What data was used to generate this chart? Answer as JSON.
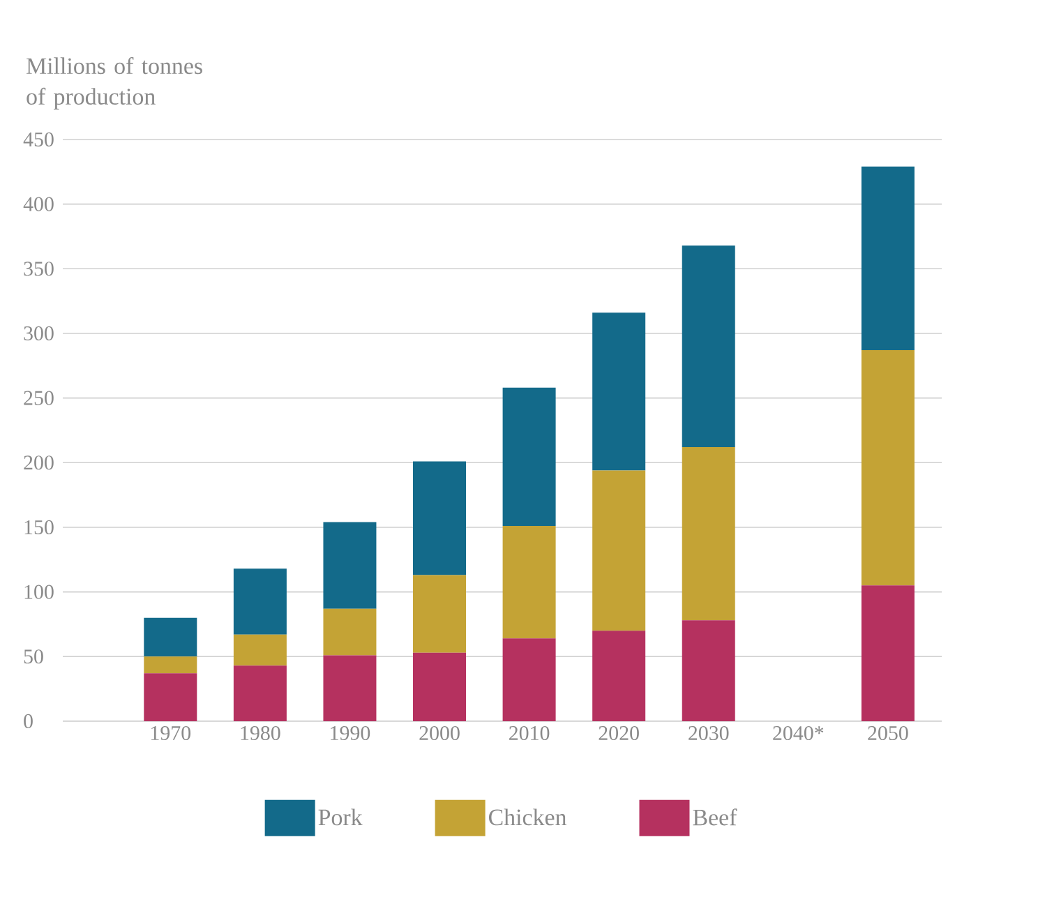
{
  "chart_data": {
    "type": "bar",
    "stacked": true,
    "ylabel": "Millions of tonnes of production",
    "categories": [
      "1970",
      "1980",
      "1990",
      "2000",
      "2010",
      "2020",
      "2030",
      "2040*",
      "2050"
    ],
    "series": [
      {
        "name": "Beef",
        "color": "#b5315f",
        "values": [
          37,
          43,
          51,
          53,
          64,
          70,
          78,
          null,
          105
        ]
      },
      {
        "name": "Chicken",
        "color": "#c4a335",
        "values": [
          13,
          24,
          36,
          60,
          87,
          124,
          134,
          null,
          182
        ]
      },
      {
        "name": "Pork",
        "color": "#136a8a",
        "values": [
          30,
          51,
          67,
          88,
          107,
          122,
          156,
          null,
          142
        ]
      }
    ],
    "ylim": [
      0,
      450
    ],
    "yticks": [
      0,
      50,
      100,
      150,
      200,
      250,
      300,
      350,
      400,
      450
    ],
    "grid": "y",
    "legend": "bottom"
  }
}
